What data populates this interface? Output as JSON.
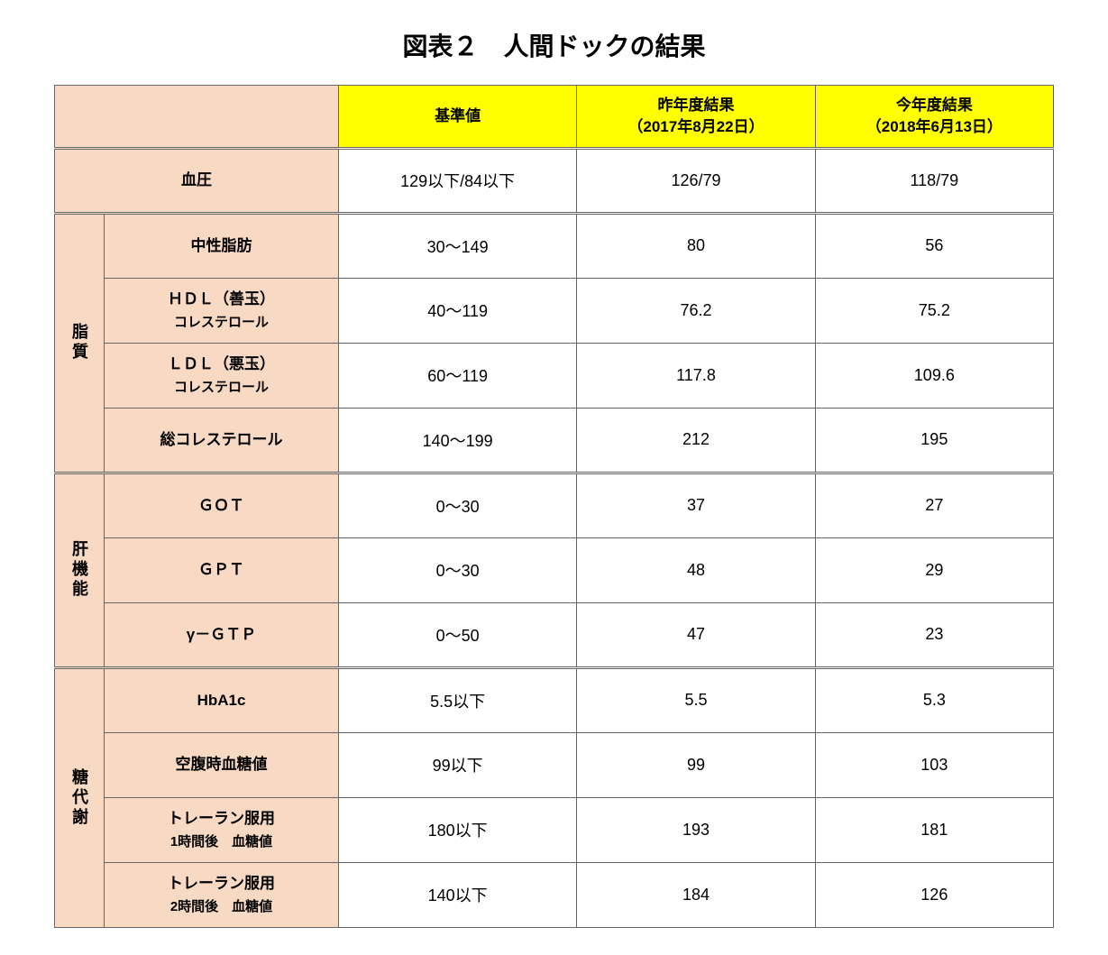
{
  "title": "図表２　人間ドックの結果",
  "columns": {
    "item_blank": "",
    "reference": "基準値",
    "prev_line1": "昨年度結果",
    "prev_line2": "（2017年8月22日）",
    "curr_line1": "今年度結果",
    "curr_line2": "（2018年6月13日）"
  },
  "colors": {
    "header_yellow": "#ffff00",
    "header_peach": "#f8d9c4",
    "border": "#666666",
    "background": "#ffffff"
  },
  "bp": {
    "label": "血圧",
    "ref": "129以下/84以下",
    "prev": "126/79",
    "curr": "118/79"
  },
  "groups": [
    {
      "category": "脂質",
      "rows": [
        {
          "label": "中性脂肪",
          "ref": "30～149",
          "prev": "80",
          "curr": "56"
        },
        {
          "label_l1": "ＨＤＬ（善玉）",
          "label_l2": "コレステロール",
          "ref": "40～119",
          "prev": "76.2",
          "curr": "75.2"
        },
        {
          "label_l1": "ＬＤＬ（悪玉）",
          "label_l2": "コレステロール",
          "ref": "60～119",
          "prev": "117.8",
          "curr": "109.6"
        },
        {
          "label": "総コレステロール",
          "ref": "140～199",
          "prev": "212",
          "curr": "195"
        }
      ]
    },
    {
      "category": "肝機能",
      "rows": [
        {
          "label": "ＧＯＴ",
          "ref": "0～30",
          "prev": "37",
          "curr": "27"
        },
        {
          "label": "ＧＰＴ",
          "ref": "0～30",
          "prev": "48",
          "curr": "29"
        },
        {
          "label": "γ－ＧＴＰ",
          "ref": "0～50",
          "prev": "47",
          "curr": "23"
        }
      ]
    },
    {
      "category": "糖代謝",
      "rows": [
        {
          "label": "HbA1c",
          "ref": "5.5以下",
          "prev": "5.5",
          "curr": "5.3"
        },
        {
          "label": "空腹時血糖値",
          "ref": "99以下",
          "prev": "99",
          "curr": "103"
        },
        {
          "label_l1": "トレーラン服用",
          "label_l2": "1時間後　血糖値",
          "ref": "180以下",
          "prev": "193",
          "curr": "181"
        },
        {
          "label_l1": "トレーラン服用",
          "label_l2": "2時間後　血糖値",
          "ref": "140以下",
          "prev": "184",
          "curr": "126"
        }
      ]
    }
  ]
}
